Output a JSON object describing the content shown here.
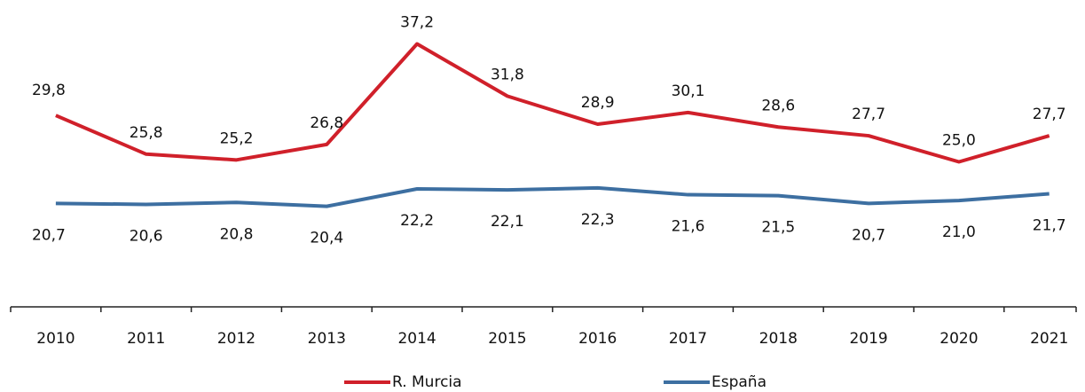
{
  "chart_data": {
    "type": "line",
    "categories": [
      "2010",
      "2011",
      "2012",
      "2013",
      "2014",
      "2015",
      "2016",
      "2017",
      "2018",
      "2019",
      "2020",
      "2021"
    ],
    "series": [
      {
        "name": "R. Murcia",
        "color": "#d0202a",
        "values": [
          29.8,
          25.8,
          25.2,
          26.8,
          37.2,
          31.8,
          28.9,
          30.1,
          28.6,
          27.7,
          25.0,
          27.7
        ],
        "value_labels": [
          "29,8",
          "25,8",
          "25,2",
          "26,8",
          "37,2",
          "31,8",
          "28,9",
          "30,1",
          "28,6",
          "27,7",
          "25,0",
          "27,7"
        ]
      },
      {
        "name": "España",
        "color": "#3d6fa1",
        "values": [
          20.7,
          20.6,
          20.8,
          20.4,
          22.2,
          22.1,
          22.3,
          21.6,
          21.5,
          20.7,
          21.0,
          21.7
        ],
        "value_labels": [
          "20,7",
          "20,6",
          "20,8",
          "20,4",
          "22,2",
          "22,1",
          "22,3",
          "21,6",
          "21,5",
          "20,7",
          "21,0",
          "21,7"
        ]
      }
    ],
    "ylim": [
      10,
      42
    ],
    "legend": "bottom"
  }
}
